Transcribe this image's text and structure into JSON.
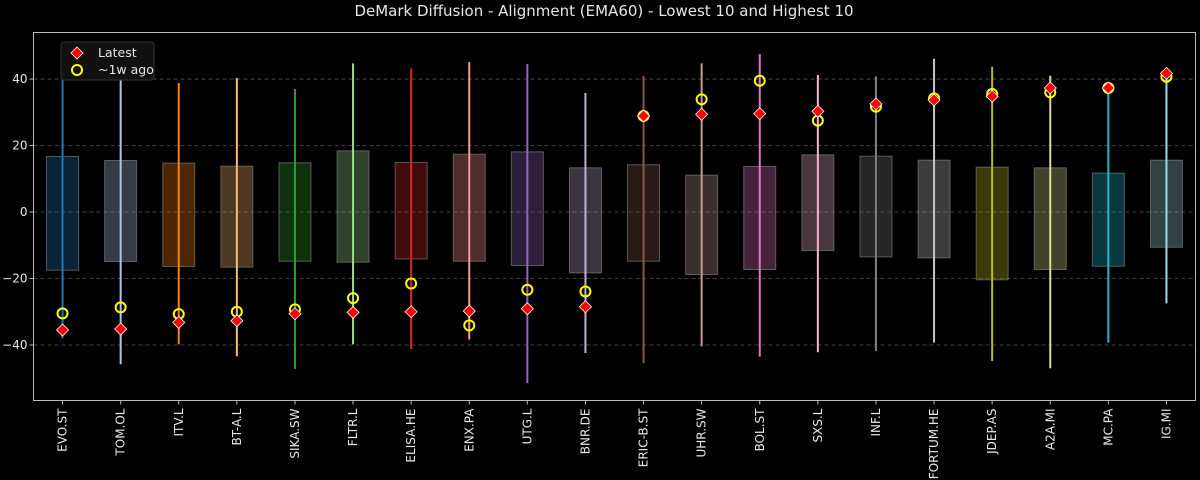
{
  "chart_data": {
    "type": "range-box",
    "title": "DeMark Diffusion - Alignment (EMA60) - Lowest 10 and Highest 10",
    "xlabel": "",
    "ylabel": "",
    "ylim": [
      -56.7,
      54
    ],
    "yticks": [
      -40,
      -20,
      0,
      20,
      40
    ],
    "grid": "horizontal dashed",
    "legend": {
      "placement": "top-left",
      "entries": [
        {
          "label": "Latest",
          "marker": "diamond",
          "color": "#ff0000"
        },
        {
          "label": "~1w ago",
          "marker": "circle",
          "color": "#ffff00"
        }
      ]
    },
    "categories": [
      "EVO.ST",
      "TOM.OL",
      "ITV.L",
      "BT-A.L",
      "SIKA.SW",
      "FLTR.L",
      "ELISA.HE",
      "ENX.PA",
      "UTG.L",
      "BNR.DE",
      "ERIC-B.ST",
      "UHR.SW",
      "BOL.ST",
      "SXS.L",
      "INF.L",
      "FORTUM.HE",
      "JDEP.AS",
      "A2A.MI",
      "MC.PA",
      "IG.MI"
    ],
    "colors": [
      "#1f77b4",
      "#aec7e8",
      "#ff7f0e",
      "#ffbb78",
      "#2ca02c",
      "#98df8a",
      "#d62728",
      "#ff9896",
      "#9467bd",
      "#c5b0d5",
      "#8c564b",
      "#c49c94",
      "#e377c2",
      "#f7b6d2",
      "#7f7f7f",
      "#c7c7c7",
      "#bcbd22",
      "#dbdb8d",
      "#17becf",
      "#9edae5"
    ],
    "range_max": [
      49,
      45.7,
      38.8,
      40.3,
      37,
      44.7,
      43.2,
      45.1,
      44.5,
      35.8,
      40.9,
      44.7,
      47.5,
      41.2,
      40.8,
      46.1,
      43.7,
      41,
      37.5,
      43
    ],
    "range_min": [
      -38,
      -45.8,
      -39.8,
      -43.4,
      -47.2,
      -39.8,
      -41.2,
      -38.4,
      -51.5,
      -42.4,
      -45.5,
      -40.4,
      -43.5,
      -42.2,
      -41.8,
      -39.3,
      -44.8,
      -47,
      -39.3,
      -27.5
    ],
    "box_high": [
      16.7,
      15.5,
      14.7,
      13.8,
      14.8,
      18.4,
      14.9,
      17.4,
      18.1,
      13.3,
      14.2,
      11.1,
      13.7,
      17.2,
      16.8,
      15.6,
      13.5,
      13.3,
      11.7,
      15.6
    ],
    "box_low": [
      -17.5,
      -14.9,
      -16.4,
      -16.6,
      -14.8,
      -15.1,
      -14.1,
      -14.8,
      -16.1,
      -18.3,
      -14.8,
      -18.8,
      -17.3,
      -11.6,
      -13.5,
      -13.8,
      -20.4,
      -17.3,
      -16.3,
      -10.6
    ],
    "series": [
      {
        "name": "Latest",
        "values": [
          -35.5,
          -35.2,
          -33.2,
          -32.7,
          -30.6,
          -30.2,
          -30,
          -29.8,
          -29.1,
          -28.5,
          28.9,
          29.4,
          29.6,
          30.3,
          32.5,
          33.7,
          34.8,
          37.3,
          37.3,
          41.7
        ]
      },
      {
        "name": "~1w ago",
        "values": [
          -30.5,
          -28.7,
          -30.7,
          -30,
          -29.3,
          -25.9,
          -21.5,
          -34.1,
          -23.4,
          -23.9,
          28.9,
          33.9,
          39.5,
          27.5,
          31.7,
          34.2,
          35.5,
          36,
          37.3,
          40.7
        ]
      }
    ]
  }
}
